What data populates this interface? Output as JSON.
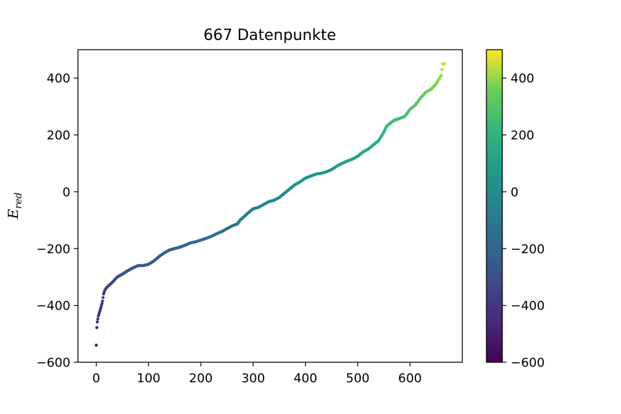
{
  "chart_data": {
    "type": "scatter",
    "title": "667 Datenpunkte",
    "xlabel": "",
    "ylabel": "E",
    "ylabel_subscript": "red",
    "xlim": [
      -35,
      700
    ],
    "ylim": [
      -600,
      500
    ],
    "x_ticks": [
      0,
      100,
      200,
      300,
      400,
      500,
      600
    ],
    "y_ticks": [
      -600,
      -400,
      -200,
      0,
      200,
      400
    ],
    "colorbar": {
      "colormap": "viridis",
      "range": [
        -600,
        500
      ],
      "ticks": [
        -600,
        -400,
        -200,
        0,
        200,
        400
      ]
    },
    "n_points": 667,
    "color_by": "y",
    "grid": false,
    "curve_samples": {
      "x": [
        0,
        1,
        2,
        4,
        6,
        8,
        10,
        12,
        14,
        16,
        18,
        20,
        25,
        30,
        35,
        40,
        50,
        60,
        70,
        80,
        90,
        100,
        110,
        120,
        130,
        140,
        150,
        160,
        170,
        180,
        190,
        200,
        210,
        220,
        230,
        240,
        250,
        260,
        270,
        275,
        280,
        290,
        300,
        310,
        320,
        330,
        340,
        350,
        360,
        370,
        380,
        390,
        400,
        410,
        420,
        430,
        440,
        450,
        460,
        470,
        480,
        490,
        500,
        510,
        520,
        530,
        540,
        550,
        555,
        560,
        570,
        580,
        590,
        600,
        610,
        620,
        630,
        640,
        650,
        655,
        660,
        662,
        664,
        666
      ],
      "y": [
        -540,
        -478,
        -458,
        -437,
        -425,
        -413,
        -400,
        -385,
        -360,
        -348,
        -342,
        -337,
        -328,
        -320,
        -310,
        -300,
        -290,
        -278,
        -268,
        -260,
        -260,
        -255,
        -244,
        -228,
        -215,
        -205,
        -200,
        -195,
        -188,
        -180,
        -176,
        -170,
        -164,
        -157,
        -148,
        -140,
        -130,
        -120,
        -113,
        -100,
        -92,
        -75,
        -60,
        -55,
        -45,
        -35,
        -30,
        -20,
        -5,
        10,
        25,
        35,
        48,
        55,
        62,
        65,
        70,
        78,
        90,
        100,
        108,
        115,
        125,
        140,
        150,
        165,
        180,
        210,
        230,
        238,
        252,
        258,
        265,
        290,
        305,
        330,
        350,
        360,
        380,
        395,
        410,
        450,
        450,
        450
      ]
    }
  }
}
